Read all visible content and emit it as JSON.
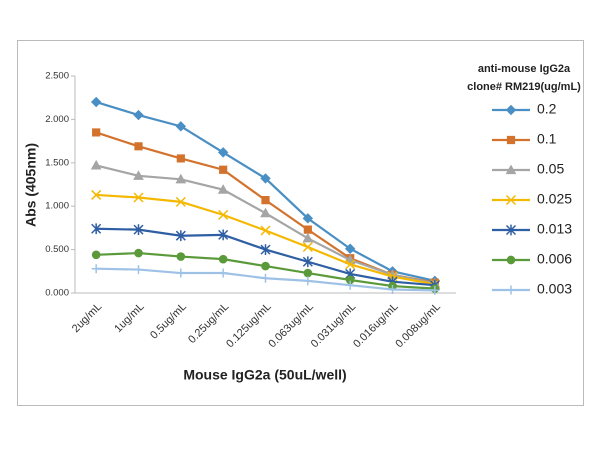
{
  "chart_data": {
    "type": "line",
    "x_label": "Mouse IgG2a (50uL/well)",
    "y_label": "Abs (405nm)",
    "legend_title": [
      "anti-mouse IgG2a",
      "clone# RM219(ug/mL)"
    ],
    "legend_position": "right",
    "grid": false,
    "categories": [
      "2ug/mL",
      "1ug/mL",
      "0.5ug/mL",
      "0.25ug/mL",
      "0.125ug/mL",
      "0.063ug/mL",
      "0.031ug/mL",
      "0.016ug/mL",
      "0.008ug/mL"
    ],
    "ylim": [
      0,
      2.5
    ],
    "yticks": [
      {
        "value": 2.5,
        "label": "2.500"
      },
      {
        "value": 2,
        "label": "2.000"
      },
      {
        "value": 1.5,
        "label": "1.500"
      },
      {
        "value": 1,
        "label": "1.000"
      },
      {
        "value": 0.5,
        "label": "0.500"
      },
      {
        "value": 0,
        "label": "0.000"
      }
    ],
    "series": [
      {
        "name": "0.2",
        "color": "#4a8fc4",
        "marker": "diamond",
        "values": [
          2.2,
          2.05,
          1.92,
          1.62,
          1.32,
          0.86,
          0.51,
          0.25,
          0.14
        ]
      },
      {
        "name": "0.1",
        "color": "#d3722c",
        "marker": "square",
        "values": [
          1.85,
          1.69,
          1.55,
          1.42,
          1.07,
          0.73,
          0.4,
          0.21,
          0.12
        ]
      },
      {
        "name": "0.05",
        "color": "#a5a5a5",
        "marker": "triangle",
        "values": [
          1.47,
          1.35,
          1.31,
          1.19,
          0.92,
          0.63,
          0.38,
          0.21,
          0.11
        ]
      },
      {
        "name": "0.025",
        "color": "#f5b800",
        "marker": "x",
        "values": [
          1.13,
          1.1,
          1.05,
          0.9,
          0.72,
          0.53,
          0.33,
          0.19,
          0.1
        ]
      },
      {
        "name": "0.013",
        "color": "#2e5ea3",
        "marker": "star",
        "values": [
          0.74,
          0.73,
          0.66,
          0.67,
          0.5,
          0.36,
          0.22,
          0.13,
          0.09
        ]
      },
      {
        "name": "0.006",
        "color": "#5b9a3a",
        "marker": "circle",
        "values": [
          0.44,
          0.46,
          0.42,
          0.39,
          0.31,
          0.23,
          0.15,
          0.08,
          0.05
        ]
      },
      {
        "name": "0.003",
        "color": "#9ec2e6",
        "marker": "plus",
        "values": [
          0.28,
          0.27,
          0.23,
          0.23,
          0.17,
          0.14,
          0.09,
          0.04,
          0.03
        ]
      }
    ]
  }
}
